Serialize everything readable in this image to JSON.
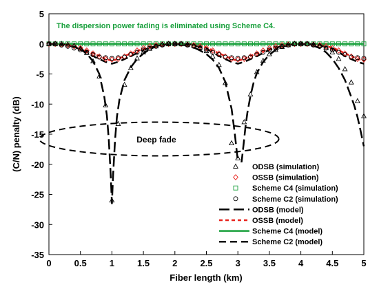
{
  "chart_data": {
    "type": "line",
    "xlabel": "Fiber length (km)",
    "ylabel": "(C/N) penalty (dB)",
    "xlim": [
      0,
      5
    ],
    "ylim": [
      -35,
      5
    ],
    "xticks": [
      0,
      0.5,
      1,
      1.5,
      2,
      2.5,
      3,
      3.5,
      4,
      4.5,
      5
    ],
    "xtick_labels": [
      "0",
      "0.5",
      "1",
      "1.5",
      "2",
      "2.5",
      "3",
      "3.5",
      "4",
      "4.5",
      "5"
    ],
    "yticks": [
      5,
      0,
      -5,
      -10,
      -15,
      -20,
      -25,
      -30,
      -35
    ],
    "ytick_labels": [
      "5",
      "0",
      "-5",
      "-10",
      "-15",
      "-20",
      "-25",
      "-30",
      "-35"
    ],
    "grid": false,
    "legend_placement": "bottom-right",
    "annotations": {
      "top_note": "The dispersion power fading is eliminated using Scheme C4.",
      "top_note_color": "#19a03c",
      "deep_fade_label": "Deep fade",
      "deep_fade_ellipse": {
        "center_x": 1.75,
        "center_y": -15.8,
        "rx": 1.9,
        "ry": 2.8
      }
    },
    "model_series": [
      {
        "name": "ODSB (model)",
        "color": "#000000",
        "dash": "long",
        "x": [
          0,
          0.25,
          0.5,
          0.6,
          0.7,
          0.8,
          0.88,
          0.92,
          0.95,
          0.98,
          1.0,
          1.02,
          1.05,
          1.08,
          1.12,
          1.2,
          1.3,
          1.4,
          1.5,
          1.6,
          1.7,
          1.8,
          1.9,
          2.0,
          2.1,
          2.2,
          2.3,
          2.4,
          2.5,
          2.6,
          2.7,
          2.8,
          2.9,
          2.95,
          3.0,
          3.03,
          3.06,
          3.09,
          3.12,
          3.15,
          3.2,
          3.25,
          3.3,
          3.4,
          3.5,
          3.6,
          3.7,
          3.8,
          3.9,
          4.0,
          4.1,
          4.2,
          4.3,
          4.4,
          4.5,
          4.6,
          4.7,
          4.8,
          4.85,
          4.9,
          4.95,
          5.0
        ],
        "y": [
          0,
          0,
          -0.9,
          -1.6,
          -2.9,
          -5.0,
          -8.8,
          -11.9,
          -15.8,
          -21.6,
          -26.5,
          -21.6,
          -15.9,
          -12.1,
          -9.2,
          -6.0,
          -3.9,
          -2.5,
          -1.6,
          -0.9,
          -0.4,
          -0.1,
          0,
          0,
          -0.1,
          -0.3,
          -0.6,
          -1.1,
          -1.7,
          -2.6,
          -4.0,
          -6.3,
          -10.8,
          -14.8,
          -19.5,
          -21.0,
          -19.5,
          -16.8,
          -13.8,
          -11.5,
          -8.6,
          -6.4,
          -4.9,
          -3.0,
          -1.8,
          -1.0,
          -0.5,
          -0.2,
          0,
          0,
          -0.1,
          -0.3,
          -0.7,
          -1.4,
          -2.5,
          -4.0,
          -6.0,
          -8.8,
          -10.3,
          -12.2,
          -14.5,
          -17.0
        ]
      },
      {
        "name": "OSSB (model)",
        "color": "#e8231d",
        "dash": "short",
        "x": [
          0,
          0.25,
          0.5,
          0.75,
          0.9,
          1.0,
          1.1,
          1.25,
          1.5,
          1.75,
          2.0,
          2.25,
          2.5,
          2.75,
          2.9,
          3.0,
          3.1,
          3.25,
          3.5,
          3.75,
          4.0,
          4.25,
          4.5,
          4.75,
          4.9,
          5.0
        ],
        "y": [
          0,
          -0.1,
          -0.6,
          -1.8,
          -2.5,
          -2.8,
          -2.5,
          -1.8,
          -0.8,
          -0.2,
          0,
          -0.1,
          -0.6,
          -1.8,
          -2.5,
          -2.8,
          -2.5,
          -1.8,
          -0.8,
          -0.2,
          0,
          -0.1,
          -0.6,
          -1.8,
          -2.5,
          -2.8
        ]
      },
      {
        "name": "Scheme C4 (model)",
        "color": "#19a03c",
        "dash": "solid",
        "x": [
          0,
          5
        ],
        "y": [
          0,
          0
        ]
      },
      {
        "name": "Scheme C2 (model)",
        "color": "#000000",
        "dash": "medium",
        "x": [
          0,
          0.25,
          0.5,
          0.75,
          0.9,
          1.0,
          1.1,
          1.25,
          1.5,
          1.75,
          2.0,
          2.25,
          2.5,
          2.75,
          2.9,
          3.0,
          3.1,
          3.25,
          3.5,
          3.75,
          4.0,
          4.25,
          4.5,
          4.75,
          4.9,
          5.0
        ],
        "y": [
          0,
          -0.1,
          -0.8,
          -2.3,
          -3.0,
          -3.3,
          -3.0,
          -2.3,
          -1.0,
          -0.2,
          0,
          -0.1,
          -0.8,
          -2.3,
          -3.0,
          -3.3,
          -3.0,
          -2.3,
          -1.0,
          -0.2,
          0,
          -0.1,
          -0.8,
          -2.3,
          -3.0,
          -3.3
        ]
      }
    ],
    "sim_series": [
      {
        "name": "ODSB (simulation)",
        "marker": "triangle",
        "color": "#000000",
        "x": [
          0,
          0.1,
          0.2,
          0.3,
          0.4,
          0.5,
          0.6,
          0.7,
          0.8,
          0.9,
          1.0,
          1.1,
          1.2,
          1.3,
          1.4,
          1.5,
          1.6,
          1.7,
          1.8,
          1.9,
          2.0,
          2.1,
          2.2,
          2.3,
          2.4,
          2.5,
          2.6,
          2.7,
          2.8,
          2.9,
          3.0,
          3.1,
          3.2,
          3.3,
          3.4,
          3.5,
          3.6,
          3.7,
          3.8,
          3.9,
          4.0,
          4.1,
          4.2,
          4.3,
          4.4,
          4.5,
          4.6,
          4.7,
          4.8,
          4.9,
          5.0
        ],
        "y": [
          0,
          0,
          0,
          -0.1,
          -0.3,
          -0.8,
          -1.5,
          -2.9,
          -5.4,
          -10.2,
          -26.0,
          -13.3,
          -6.8,
          -4.0,
          -2.4,
          -1.4,
          -0.8,
          -0.4,
          -0.1,
          0,
          0,
          0,
          -0.1,
          -0.3,
          -0.6,
          -1.2,
          -2.1,
          -3.5,
          -6.5,
          -16.5,
          -19.0,
          -13.0,
          -8.4,
          -4.7,
          -2.8,
          -1.7,
          -1.0,
          -0.5,
          -0.2,
          0,
          0,
          0,
          -0.1,
          -0.3,
          -0.7,
          -1.4,
          -2.5,
          -4.2,
          -6.4,
          -9.5,
          -12.0
        ]
      },
      {
        "name": "OSSB (simulation)",
        "marker": "diamond",
        "color": "#e8231d",
        "x": [
          0,
          0.1,
          0.2,
          0.3,
          0.4,
          0.5,
          0.6,
          0.7,
          0.8,
          0.9,
          1.0,
          1.1,
          1.2,
          1.3,
          1.4,
          1.5,
          1.6,
          1.7,
          1.8,
          1.9,
          2.0,
          2.1,
          2.2,
          2.3,
          2.4,
          2.5,
          2.6,
          2.7,
          2.8,
          2.9,
          3.0,
          3.1,
          3.2,
          3.3,
          3.4,
          3.5,
          3.6,
          3.7,
          3.8,
          3.9,
          4.0,
          4.1,
          4.2,
          4.3,
          4.4,
          4.5,
          4.6,
          4.7,
          4.8,
          4.9,
          5.0
        ],
        "y": [
          0,
          0,
          -0.1,
          -0.2,
          -0.4,
          -0.7,
          -1.1,
          -1.6,
          -2.1,
          -2.5,
          -2.6,
          -2.5,
          -2.1,
          -1.6,
          -1.1,
          -0.7,
          -0.4,
          -0.2,
          -0.1,
          0,
          0,
          0,
          -0.1,
          -0.2,
          -0.4,
          -0.7,
          -1.1,
          -1.6,
          -2.1,
          -2.5,
          -2.6,
          -2.5,
          -2.1,
          -1.6,
          -1.1,
          -0.7,
          -0.4,
          -0.2,
          -0.1,
          0,
          0,
          0,
          -0.1,
          -0.2,
          -0.4,
          -0.7,
          -1.1,
          -1.6,
          -2.1,
          -2.5,
          -2.6
        ]
      },
      {
        "name": "Scheme C4 (simulation)",
        "marker": "square",
        "color": "#19a03c",
        "x": [
          0,
          0.1,
          0.2,
          0.3,
          0.4,
          0.5,
          0.6,
          0.7,
          0.8,
          0.9,
          1.0,
          1.1,
          1.2,
          1.3,
          1.4,
          1.5,
          1.6,
          1.7,
          1.8,
          1.9,
          2.0,
          2.1,
          2.2,
          2.3,
          2.4,
          2.5,
          2.6,
          2.7,
          2.8,
          2.9,
          3.0,
          3.1,
          3.2,
          3.3,
          3.4,
          3.5,
          3.6,
          3.7,
          3.8,
          3.9,
          4.0,
          4.1,
          4.2,
          4.3,
          4.4,
          4.5,
          4.6,
          4.7,
          4.8,
          4.9,
          5.0
        ],
        "y": [
          0,
          0,
          0,
          0,
          0,
          0,
          0,
          0,
          0,
          0,
          0,
          0,
          0,
          0,
          0,
          0,
          0,
          0,
          0,
          0,
          0,
          0,
          0,
          0,
          0,
          0,
          0,
          0,
          0,
          0,
          0,
          0,
          0,
          0,
          0,
          0,
          0,
          0,
          0,
          0,
          0,
          0,
          0,
          0,
          0,
          0,
          0,
          0,
          0,
          0,
          0
        ]
      },
      {
        "name": "Scheme C2 (simulation)",
        "marker": "circle",
        "color": "#000000",
        "x": [
          0,
          0.1,
          0.2,
          0.3,
          0.4,
          0.5,
          0.6,
          0.7,
          0.8,
          0.9,
          1.0,
          1.1,
          1.2,
          1.3,
          1.4,
          1.5,
          1.6,
          1.7,
          1.8,
          1.9,
          2.0,
          2.1,
          2.2,
          2.3,
          2.4,
          2.5,
          2.6,
          2.7,
          2.8,
          2.9,
          3.0,
          3.1,
          3.2,
          3.3,
          3.4,
          3.5,
          3.6,
          3.7,
          3.8,
          3.9,
          4.0,
          4.1,
          4.2,
          4.3,
          4.4,
          4.5,
          4.6,
          4.7,
          4.8,
          4.9,
          5.0
        ],
        "y": [
          0,
          0,
          -0.2,
          -0.4,
          -0.7,
          -1.0,
          -1.4,
          -1.8,
          -2.2,
          -2.3,
          -2.4,
          -2.3,
          -2.2,
          -1.8,
          -1.4,
          -1.0,
          -0.7,
          -0.4,
          -0.2,
          0,
          0,
          0,
          -0.2,
          -0.4,
          -0.7,
          -1.0,
          -1.4,
          -1.8,
          -2.2,
          -2.3,
          -2.4,
          -2.3,
          -2.2,
          -1.8,
          -1.4,
          -1.0,
          -0.7,
          -0.4,
          -0.2,
          0,
          0,
          0,
          -0.2,
          -0.4,
          -0.7,
          -1.0,
          -1.4,
          -1.8,
          -2.2,
          -2.3,
          -2.4
        ]
      }
    ],
    "legend": [
      {
        "label": "ODSB (simulation)",
        "kind": "marker",
        "marker": "triangle",
        "color": "#000000"
      },
      {
        "label": "OSSB (simulation)",
        "kind": "marker",
        "marker": "diamond",
        "color": "#e8231d"
      },
      {
        "label": "Scheme C4 (simulation)",
        "kind": "marker",
        "marker": "square",
        "color": "#19a03c"
      },
      {
        "label": "Scheme C2 (simulation)",
        "kind": "marker",
        "marker": "circle",
        "color": "#000000"
      },
      {
        "label": "ODSB (model)",
        "kind": "line",
        "dash": "long",
        "color": "#000000"
      },
      {
        "label": "OSSB (model)",
        "kind": "line",
        "dash": "short",
        "color": "#e8231d"
      },
      {
        "label": "Scheme C4 (model)",
        "kind": "line",
        "dash": "solid",
        "color": "#19a03c"
      },
      {
        "label": "Scheme C2 (model)",
        "kind": "line",
        "dash": "medium",
        "color": "#000000"
      }
    ]
  }
}
